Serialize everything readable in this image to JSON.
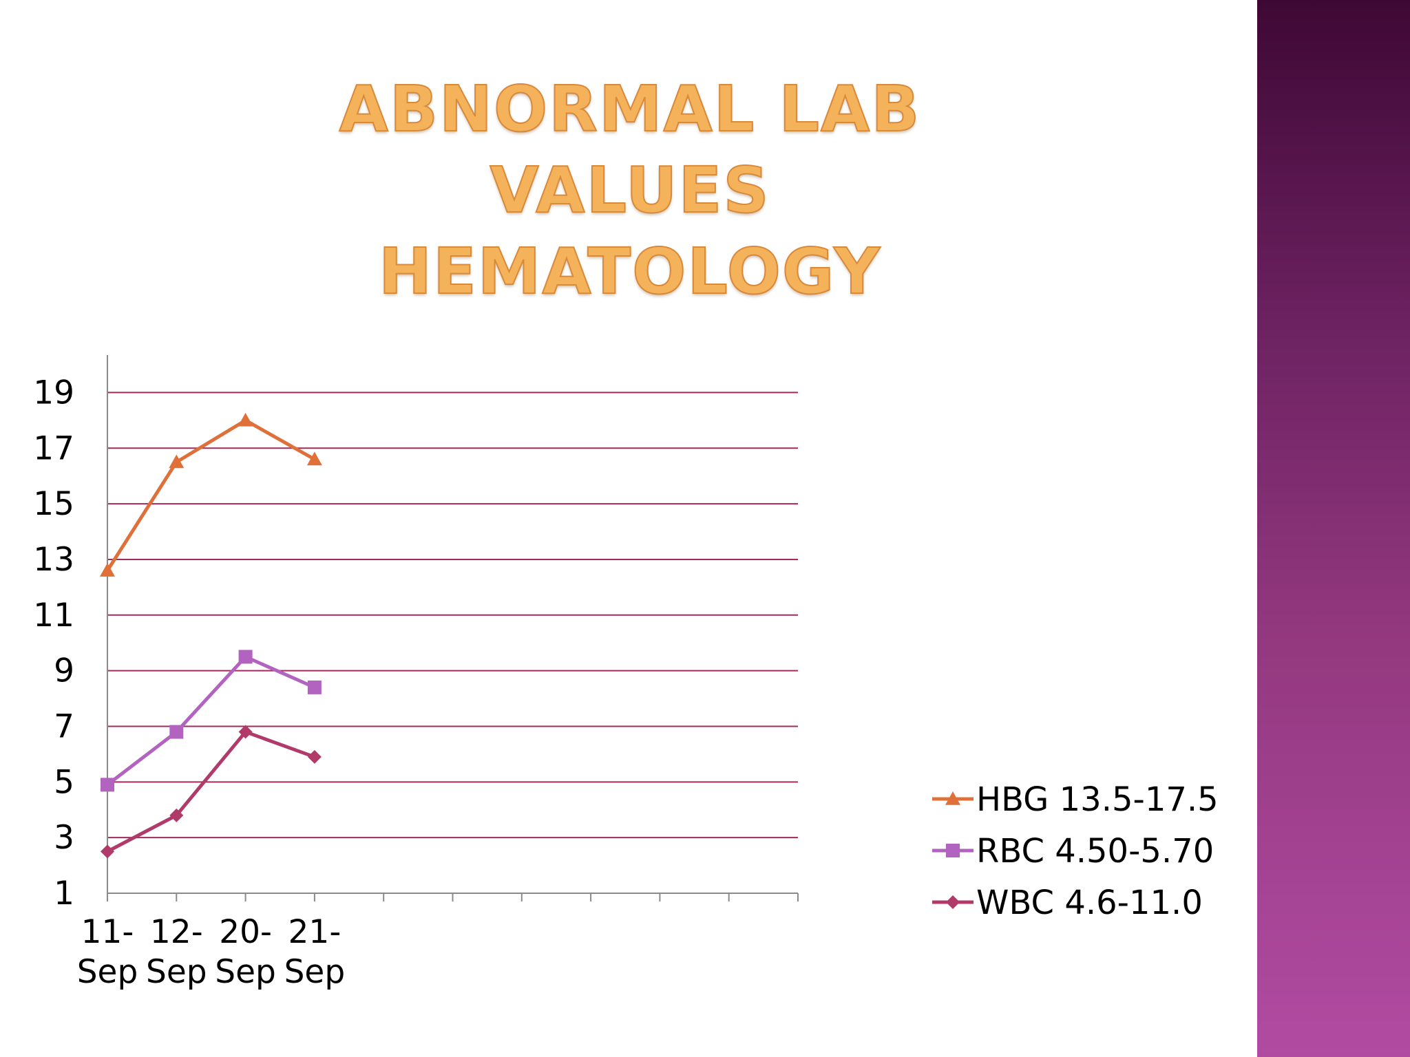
{
  "slide": {
    "title_line1": "Abnormal Lab Values",
    "title_line2": "Hematology",
    "accent_band_color": "#93387f"
  },
  "chart_data": {
    "type": "line",
    "title": "Abnormal Lab Values Hematology",
    "categories": [
      "11-Sep",
      "12-Sep",
      "20-Sep",
      "21-Sep"
    ],
    "category_slots": 10,
    "ylim": [
      1,
      20
    ],
    "yticks": [
      1,
      3,
      5,
      7,
      9,
      11,
      13,
      15,
      17,
      19
    ],
    "grid": true,
    "gridline_color": "#a3285c",
    "legend_position": "right",
    "series": [
      {
        "name": "HBG 13.5-17.5",
        "values": [
          12.6,
          16.5,
          18.0,
          16.6
        ],
        "color": "#e0703a",
        "marker": "triangle"
      },
      {
        "name": "RBC 4.50-5.70",
        "values": [
          4.9,
          6.8,
          9.5,
          8.4
        ],
        "color": "#b263c0",
        "marker": "square"
      },
      {
        "name": "WBC 4.6-11.0",
        "values": [
          2.5,
          3.8,
          6.8,
          5.9
        ],
        "color": "#b03a69",
        "marker": "diamond"
      }
    ]
  }
}
